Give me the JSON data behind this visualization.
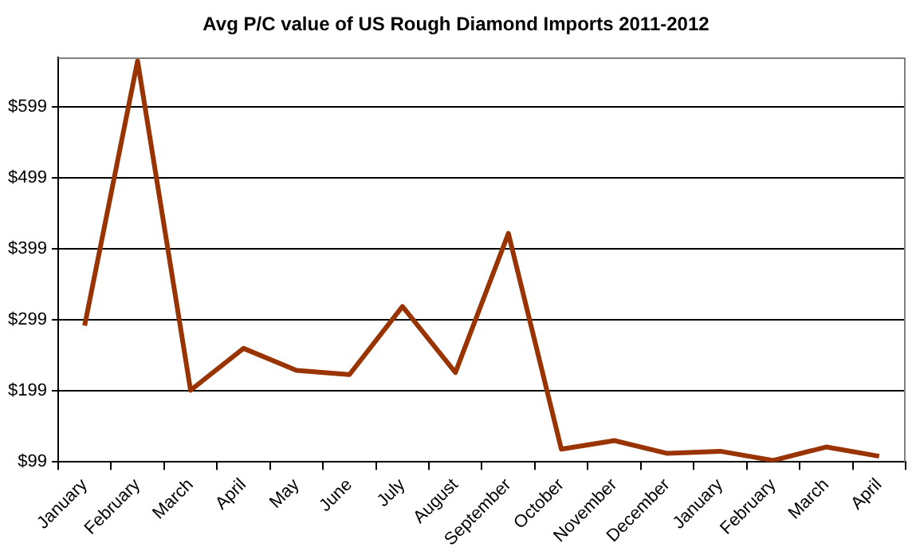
{
  "chart_data": {
    "type": "line",
    "title": "Avg P/C value of US Rough Diamond Imports 2011-2012",
    "categories": [
      "January",
      "February",
      "March",
      "April",
      "May",
      "June",
      "July",
      "August",
      "September",
      "October",
      "November",
      "December",
      "January",
      "February",
      "March",
      "April"
    ],
    "series": [
      {
        "color": "#993300",
        "values": [
          291,
          664,
          200,
          259,
          228,
          222,
          318,
          225,
          421,
          117,
          129,
          111,
          114,
          101,
          120,
          107
        ]
      }
    ],
    "ylim": [
      99,
      669
    ],
    "yticks": [
      {
        "value": 99,
        "label": "$99"
      },
      {
        "value": 199,
        "label": "$199"
      },
      {
        "value": 299,
        "label": "$299"
      },
      {
        "value": 399,
        "label": "$399"
      },
      {
        "value": 499,
        "label": "$499"
      },
      {
        "value": 599,
        "label": "$599"
      }
    ],
    "grid": "y",
    "legend": false,
    "marker": "none",
    "line_style": "solid"
  }
}
